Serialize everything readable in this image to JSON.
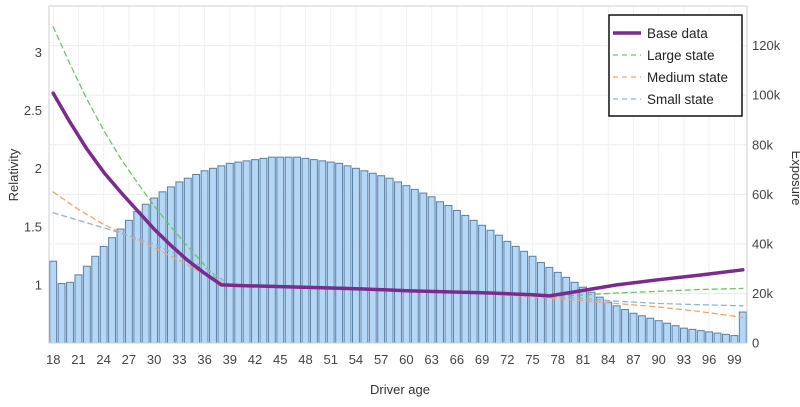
{
  "chart_data": {
    "type": "bar+line",
    "title": "",
    "xlabel": "Driver age",
    "ylabel_left": "Relativity",
    "ylabel_right": "Exposure",
    "grid": true,
    "legend_position": "top-right",
    "x_tick_labels": [
      "18",
      "21",
      "24",
      "27",
      "30",
      "33",
      "36",
      "39",
      "42",
      "45",
      "48",
      "51",
      "54",
      "57",
      "60",
      "63",
      "66",
      "69",
      "72",
      "75",
      "78",
      "81",
      "84",
      "87",
      "90",
      "93",
      "96",
      "99"
    ],
    "left_axis": {
      "range": [
        0.5,
        3.4
      ],
      "ticks": [
        1,
        1.5,
        2,
        2.5,
        3
      ],
      "tick_labels": [
        "1",
        "1.5",
        "2",
        "2.5",
        "3"
      ]
    },
    "right_axis": {
      "range": [
        0,
        136000
      ],
      "ticks": [
        0,
        20000,
        40000,
        60000,
        80000,
        100000,
        120000
      ],
      "tick_labels": [
        "0",
        "20k",
        "40k",
        "60k",
        "80k",
        "100k",
        "120k"
      ]
    },
    "exposure": {
      "ages": [
        18,
        19,
        20,
        21,
        22,
        23,
        24,
        25,
        26,
        27,
        28,
        29,
        30,
        31,
        32,
        33,
        34,
        35,
        36,
        37,
        38,
        39,
        40,
        41,
        42,
        43,
        44,
        45,
        46,
        47,
        48,
        49,
        50,
        51,
        52,
        53,
        54,
        55,
        56,
        57,
        58,
        59,
        60,
        61,
        62,
        63,
        64,
        65,
        66,
        67,
        68,
        69,
        70,
        71,
        72,
        73,
        74,
        75,
        76,
        77,
        78,
        79,
        80,
        81,
        82,
        83,
        84,
        85,
        86,
        87,
        88,
        89,
        90,
        91,
        92,
        93,
        94,
        95,
        96,
        97,
        98,
        99,
        100
      ],
      "values": [
        33000,
        24000,
        24500,
        27500,
        31000,
        35000,
        39000,
        42500,
        46000,
        49500,
        53000,
        56000,
        58500,
        61000,
        63000,
        65000,
        66500,
        68000,
        69500,
        70500,
        71500,
        72500,
        73000,
        73500,
        74000,
        74500,
        75000,
        75000,
        75000,
        75000,
        74500,
        74000,
        73500,
        73000,
        72500,
        71500,
        70500,
        69500,
        68500,
        67500,
        66500,
        65000,
        63500,
        62000,
        60500,
        59000,
        57000,
        55500,
        53500,
        51500,
        49500,
        47500,
        45500,
        43500,
        41000,
        39000,
        37000,
        35000,
        32500,
        30500,
        28500,
        26500,
        24500,
        22500,
        20500,
        18500,
        16500,
        15000,
        13500,
        12000,
        11000,
        10000,
        9000,
        8000,
        7000,
        6000,
        5500,
        5000,
        4500,
        4000,
        3500,
        3000,
        12500
      ],
      "bar_fill": "#b3d7f5",
      "bar_stroke": "#5a7fa6"
    },
    "series": [
      {
        "name": "Base data",
        "color": "#7b2a8e",
        "style": "solid",
        "x": [
          18,
          20,
          22,
          24,
          26,
          28,
          30,
          32,
          34,
          36,
          38,
          40,
          45,
          50,
          55,
          60,
          65,
          70,
          75,
          77,
          80,
          85,
          90,
          95,
          100
        ],
        "y": [
          2.65,
          2.4,
          2.17,
          1.97,
          1.8,
          1.64,
          1.48,
          1.34,
          1.21,
          1.1,
          1.0,
          0.995,
          0.985,
          0.975,
          0.965,
          0.95,
          0.94,
          0.93,
          0.915,
          0.905,
          0.94,
          1.0,
          1.045,
          1.085,
          1.13
        ]
      },
      {
        "name": "Large state",
        "color": "#6cc56c",
        "style": "dashed",
        "x": [
          18,
          20,
          22,
          24,
          26,
          28,
          30,
          32,
          34,
          36,
          38,
          45,
          55,
          65,
          75,
          80,
          85,
          90,
          95,
          100
        ],
        "y": [
          3.22,
          2.9,
          2.6,
          2.33,
          2.09,
          1.88,
          1.68,
          1.5,
          1.33,
          1.17,
          1.0,
          0.985,
          0.965,
          0.94,
          0.915,
          0.91,
          0.93,
          0.945,
          0.96,
          0.97
        ]
      },
      {
        "name": "Medium state",
        "color": "#f2a46b",
        "style": "dashed",
        "x": [
          18,
          21,
          24,
          27,
          30,
          33,
          36,
          39,
          45,
          55,
          65,
          75,
          80,
          85,
          90,
          95,
          100
        ],
        "y": [
          1.8,
          1.65,
          1.52,
          1.42,
          1.32,
          1.21,
          1.09,
          0.99,
          0.98,
          0.96,
          0.94,
          0.9,
          0.87,
          0.84,
          0.81,
          0.77,
          0.72
        ]
      },
      {
        "name": "Small state",
        "color": "#8fb3da",
        "style": "dashed",
        "x": [
          18,
          25,
          30,
          36,
          39,
          45,
          55,
          65,
          75,
          80,
          85,
          90,
          95,
          100
        ],
        "y": [
          1.62,
          1.47,
          1.35,
          1.15,
          1.0,
          0.985,
          0.965,
          0.94,
          0.91,
          0.89,
          0.86,
          0.84,
          0.83,
          0.82
        ]
      }
    ]
  }
}
